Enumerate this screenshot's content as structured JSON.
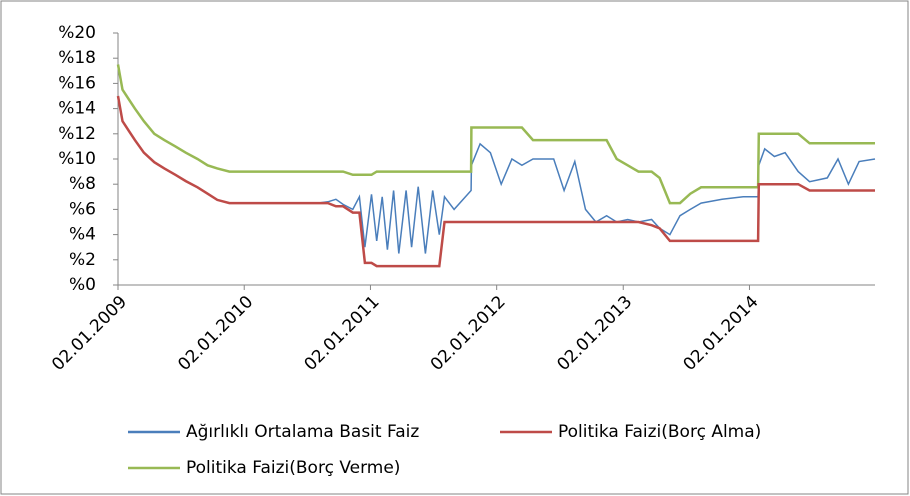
{
  "chart_data": {
    "type": "line",
    "x": [
      "02.01.2009",
      "15.01.2009",
      "20.02.2009",
      "18.03.2009",
      "17.04.2009",
      "16.05.2009",
      "17.06.2009",
      "17.07.2009",
      "20.08.2009",
      "18.09.2009",
      "16.10.2009",
      "20.11.2009",
      "01.04.2010",
      "02.08.2010",
      "01.09.2010",
      "24.09.2010",
      "15.10.2010",
      "12.11.2010",
      "01.12.2010",
      "17.12.2010",
      "05.01.2011",
      "20.01.2011",
      "05.02.2011",
      "20.02.2011",
      "10.03.2011",
      "25.03.2011",
      "15.04.2011",
      "01.05.2011",
      "20.05.2011",
      "10.06.2011",
      "01.07.2011",
      "20.07.2011",
      "04.08.2011",
      "01.09.2011",
      "20.10.2011",
      "21.10.2011",
      "15.11.2011",
      "15.12.2011",
      "15.01.2012",
      "15.02.2012",
      "15.03.2012",
      "16.04.2012",
      "15.06.2012",
      "15.07.2012",
      "15.08.2012",
      "15.09.2012",
      "15.10.2012",
      "15.11.2012",
      "14.12.2012",
      "15.01.2013",
      "15.02.2013",
      "25.03.2013",
      "17.04.2013",
      "17.05.2013",
      "15.06.2013",
      "15.07.2013",
      "15.08.2013",
      "15.10.2013",
      "15.12.2013",
      "27.01.2014",
      "29.01.2014",
      "15.02.2014",
      "15.03.2014",
      "15.04.2014",
      "23.05.2014",
      "25.06.2014",
      "15.08.2014",
      "15.09.2014",
      "15.10.2014",
      "15.11.2014",
      "31.12.2014"
    ],
    "series": [
      {
        "name": "Ağırlıklı Ortalama Basit Faiz",
        "color": "#4a7ebb",
        "values": [
          null,
          null,
          null,
          null,
          null,
          null,
          null,
          null,
          null,
          null,
          null,
          null,
          null,
          6.5,
          6.6,
          6.8,
          6.4,
          6.0,
          7.0,
          3.0,
          7.2,
          3.5,
          7.0,
          2.8,
          7.5,
          2.5,
          7.5,
          3.0,
          7.8,
          2.5,
          7.5,
          4.0,
          7.0,
          6.0,
          7.5,
          9.5,
          11.2,
          10.5,
          8.0,
          10.0,
          9.5,
          10.0,
          10.0,
          7.5,
          9.8,
          6.0,
          5.0,
          5.5,
          5.0,
          5.2,
          5.0,
          5.2,
          4.5,
          4.0,
          5.5,
          6.0,
          6.5,
          6.8,
          7.0,
          7.0,
          9.5,
          10.8,
          10.2,
          10.5,
          9.0,
          8.2,
          8.5,
          10.0,
          8.0,
          9.8,
          10.0
        ]
      },
      {
        "name": "Politika Faizi(Borç Alma)",
        "color": "#be4b48",
        "values": [
          15,
          13,
          11.5,
          10.5,
          9.75,
          9.25,
          8.75,
          8.25,
          7.75,
          7.25,
          6.75,
          6.5,
          6.5,
          6.5,
          6.5,
          6.25,
          6.25,
          5.75,
          5.75,
          1.75,
          1.75,
          1.5,
          1.5,
          1.5,
          1.5,
          1.5,
          1.5,
          1.5,
          1.5,
          1.5,
          1.5,
          1.5,
          5,
          5,
          5,
          5,
          5,
          5,
          5,
          5,
          5,
          5,
          5,
          5,
          5,
          5,
          5,
          5,
          5,
          5,
          5,
          4.75,
          4.5,
          3.5,
          3.5,
          3.5,
          3.5,
          3.5,
          3.5,
          3.5,
          8,
          8,
          8,
          8,
          8,
          7.5,
          7.5,
          7.5,
          7.5,
          7.5,
          7.5
        ]
      },
      {
        "name": "Politika Faizi(Borç Verme)",
        "color": "#98b954",
        "values": [
          17.5,
          15.5,
          14,
          13,
          12,
          11.5,
          11,
          10.5,
          10,
          9.5,
          9.25,
          9,
          9,
          9,
          9,
          9,
          9,
          8.75,
          8.75,
          8.75,
          8.75,
          9,
          9,
          9,
          9,
          9,
          9,
          9,
          9,
          9,
          9,
          9,
          9,
          9,
          9,
          12.5,
          12.5,
          12.5,
          12.5,
          12.5,
          12.5,
          11.5,
          11.5,
          11.5,
          11.5,
          11.5,
          11.5,
          11.5,
          10,
          9.5,
          9,
          9,
          8.5,
          6.5,
          6.5,
          7.25,
          7.75,
          7.75,
          7.75,
          7.75,
          12,
          12,
          12,
          12,
          12,
          11.25,
          11.25,
          11.25,
          11.25,
          11.25,
          11.25
        ]
      }
    ],
    "xlim": [
      "02.01.2009",
      "31.12.2014"
    ],
    "xticks": [
      "02.01.2009",
      "02.01.2010",
      "02.01.2011",
      "02.01.2012",
      "02.01.2013",
      "02.01.2014"
    ],
    "ylim": [
      0,
      20
    ],
    "yticks": [
      {
        "value": 0,
        "label": "%0"
      },
      {
        "value": 2,
        "label": "%2"
      },
      {
        "value": 4,
        "label": "%4"
      },
      {
        "value": 6,
        "label": "%6"
      },
      {
        "value": 8,
        "label": "%8"
      },
      {
        "value": 10,
        "label": "%10"
      },
      {
        "value": 12,
        "label": "%12"
      },
      {
        "value": 14,
        "label": "%14"
      },
      {
        "value": 16,
        "label": "%16"
      },
      {
        "value": 18,
        "label": "%18"
      },
      {
        "value": 20,
        "label": "%20"
      }
    ],
    "grid": false
  }
}
